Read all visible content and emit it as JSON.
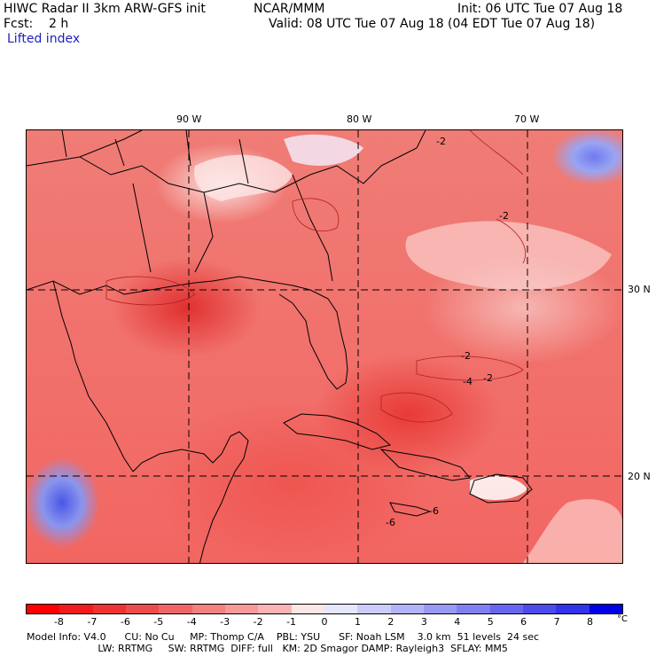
{
  "header": {
    "model": "HIWC Radar II 3km ARW-GFS init",
    "center": "NCAR/MMM",
    "init": "Init: 06 UTC Tue 07 Aug 18",
    "fcst": "Fcst:    2 h",
    "valid": "Valid: 08 UTC Tue 07 Aug 18 (04 EDT Tue 07 Aug 18)",
    "field": "Lifted index"
  },
  "axes": {
    "lon_labels": [
      "90 W",
      "80 W",
      "70 W"
    ],
    "lat_labels": [
      "30 N",
      "20 N"
    ]
  },
  "contour_labels": [
    "-2",
    "-2",
    "-2",
    "-4",
    "-2",
    "-6",
    "-6"
  ],
  "colorbar": {
    "unit": "°C",
    "ticks": [
      "-8",
      "-7",
      "-6",
      "-5",
      "-4",
      "-3",
      "-2",
      "-1",
      "0",
      "1",
      "2",
      "3",
      "4",
      "5",
      "6",
      "7",
      "8"
    ],
    "colors": [
      "#ff0000",
      "#f21a1a",
      "#ee3333",
      "#ee4c4c",
      "#f06666",
      "#f48080",
      "#f89999",
      "#fbb3b3",
      "#fde6e6",
      "#e6e6ff",
      "#ccccfc",
      "#b3b3f9",
      "#9999f6",
      "#8080f3",
      "#6666f0",
      "#4c4ced",
      "#3333ea",
      "#0000e6"
    ]
  },
  "footer": {
    "line1": "Model Info: V4.0      CU: No Cu     MP: Thomp C/A    PBL: YSU      SF: Noah LSM    3.0 km  51 levels  24 sec",
    "line2": "                       LW: RRTMG     SW: RRTMG  DIFF: full   KM: 2D Smagor DAMP: Rayleigh3  SFLAY: MM5"
  }
}
